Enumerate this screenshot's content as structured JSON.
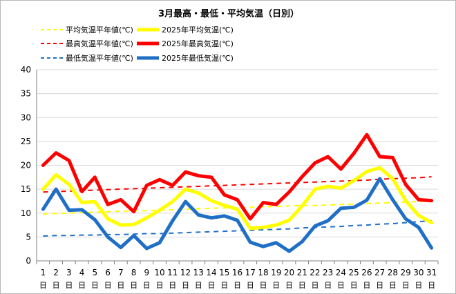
{
  "chart_data": {
    "type": "line",
    "title": "3月最高・最低・平均気温（日別）",
    "xlabel": "",
    "ylabel": "",
    "x_unit_label": "日",
    "categories": [
      "1",
      "2",
      "3",
      "4",
      "5",
      "6",
      "7",
      "8",
      "9",
      "10",
      "11",
      "12",
      "13",
      "14",
      "15",
      "16",
      "17",
      "18",
      "19",
      "20",
      "21",
      "22",
      "23",
      "24",
      "25",
      "26",
      "27",
      "28",
      "29",
      "30",
      "31"
    ],
    "ylim": [
      0,
      40
    ],
    "yticks": [
      0,
      5,
      10,
      15,
      20,
      25,
      30,
      35,
      40
    ],
    "grid": true,
    "legend_position": "top-left",
    "series": [
      {
        "name": "平均気温平年値(℃)",
        "style": "dashed",
        "color": "#ffff00",
        "values": [
          9.8,
          9.9,
          10.0,
          10.1,
          10.2,
          10.3,
          10.4,
          10.5,
          10.5,
          10.6,
          10.7,
          10.8,
          10.9,
          11.0,
          11.1,
          11.1,
          11.2,
          11.3,
          11.4,
          11.5,
          11.6,
          11.6,
          11.7,
          11.8,
          11.9,
          12.0,
          12.1,
          12.2,
          12.3,
          12.4,
          12.5
        ]
      },
      {
        "name": "2025年平均気温(℃)",
        "style": "solid",
        "color": "#ffff00",
        "values": [
          15.0,
          18.0,
          16.0,
          12.2,
          12.4,
          8.8,
          7.5,
          7.6,
          9.0,
          10.6,
          12.4,
          15.0,
          14.2,
          12.6,
          11.6,
          10.8,
          6.8,
          7.0,
          7.5,
          8.5,
          11.5,
          15.0,
          15.6,
          15.2,
          16.8,
          18.7,
          19.5,
          17.2,
          12.6,
          9.5,
          8.0
        ]
      },
      {
        "name": "最高気温平年値(℃)",
        "style": "dashed",
        "color": "#ff0000",
        "values": [
          14.4,
          14.5,
          14.6,
          14.7,
          14.8,
          14.9,
          15.0,
          15.1,
          15.2,
          15.3,
          15.4,
          15.5,
          15.6,
          15.7,
          15.8,
          15.9,
          16.0,
          16.1,
          16.2,
          16.3,
          16.4,
          16.5,
          16.6,
          16.7,
          16.8,
          16.9,
          17.1,
          17.2,
          17.3,
          17.4,
          17.6
        ]
      },
      {
        "name": "2025年最高気温(℃)",
        "style": "solid",
        "color": "#ff0000",
        "values": [
          20.0,
          22.6,
          21.0,
          14.5,
          17.5,
          11.8,
          12.8,
          10.3,
          15.8,
          17.0,
          15.8,
          18.6,
          17.8,
          17.5,
          13.8,
          12.8,
          8.8,
          12.2,
          11.8,
          14.4,
          17.6,
          20.5,
          21.8,
          19.2,
          22.5,
          26.4,
          21.8,
          21.6,
          16.0,
          12.8,
          12.6
        ]
      },
      {
        "name": "最低気温平年値(℃)",
        "style": "dashed",
        "color": "#1f6fc6",
        "values": [
          5.2,
          5.3,
          5.3,
          5.4,
          5.4,
          5.5,
          5.5,
          5.6,
          5.7,
          5.7,
          5.8,
          5.9,
          6.0,
          6.1,
          6.2,
          6.3,
          6.4,
          6.5,
          6.6,
          6.7,
          6.9,
          7.0,
          7.1,
          7.2,
          7.4,
          7.5,
          7.7,
          7.8,
          8.0,
          8.2,
          8.4
        ]
      },
      {
        "name": "2025年最低気温(℃)",
        "style": "solid",
        "color": "#1f6fc6",
        "values": [
          10.8,
          15.0,
          10.6,
          10.7,
          8.6,
          5.0,
          2.8,
          5.3,
          2.6,
          3.8,
          8.4,
          12.4,
          9.6,
          9.0,
          9.4,
          8.5,
          3.9,
          3.0,
          3.8,
          2.0,
          4.0,
          7.3,
          8.4,
          11.0,
          11.2,
          12.7,
          17.2,
          12.8,
          8.8,
          7.0,
          2.7
        ]
      }
    ]
  }
}
